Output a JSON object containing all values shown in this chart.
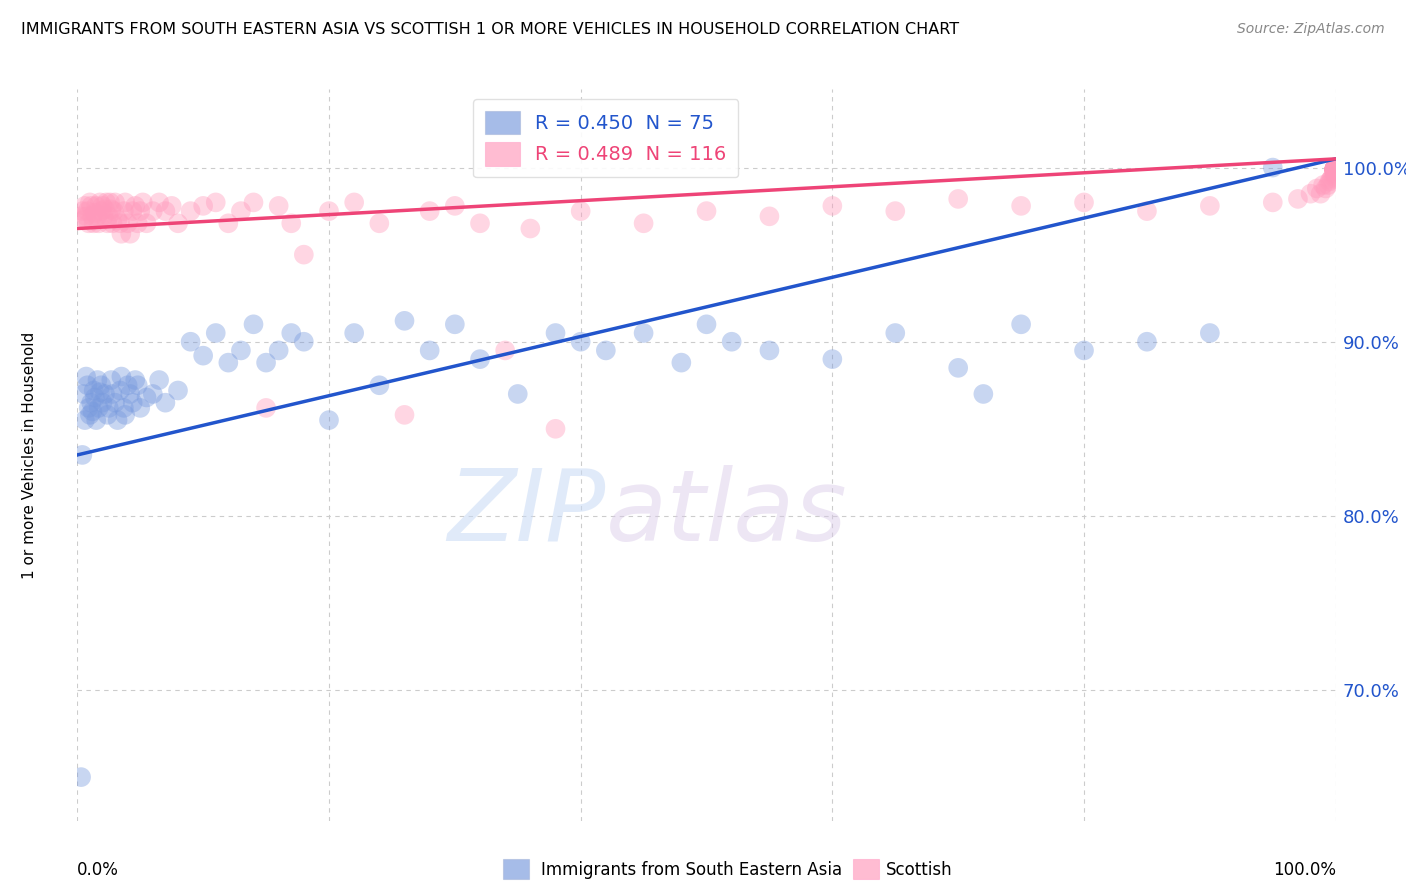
{
  "title": "IMMIGRANTS FROM SOUTH EASTERN ASIA VS SCOTTISH 1 OR MORE VEHICLES IN HOUSEHOLD CORRELATION CHART",
  "source": "Source: ZipAtlas.com",
  "ylabel": "1 or more Vehicles in Household",
  "ytick_labels": [
    "70.0%",
    "80.0%",
    "90.0%",
    "100.0%"
  ],
  "ytick_positions": [
    0.7,
    0.8,
    0.9,
    1.0
  ],
  "xlim": [
    0.0,
    1.0
  ],
  "ylim": [
    0.625,
    1.045
  ],
  "legend1_label": "R = 0.450  N = 75",
  "legend2_label": "R = 0.489  N = 116",
  "blue_color": "#7799dd",
  "pink_color": "#ff99bb",
  "blue_line_color": "#2255cc",
  "pink_line_color": "#ee4477",
  "watermark_zip": "ZIP",
  "watermark_atlas": "atlas",
  "blue_line_x0": 0.0,
  "blue_line_y0": 0.835,
  "blue_line_x1": 1.0,
  "blue_line_y1": 1.005,
  "pink_line_x0": 0.0,
  "pink_line_y0": 0.965,
  "pink_line_x1": 1.0,
  "pink_line_y1": 1.005,
  "blue_x": [
    0.003,
    0.004,
    0.005,
    0.006,
    0.007,
    0.008,
    0.009,
    0.01,
    0.011,
    0.012,
    0.013,
    0.014,
    0.015,
    0.016,
    0.017,
    0.018,
    0.019,
    0.02,
    0.022,
    0.024,
    0.025,
    0.027,
    0.028,
    0.03,
    0.032,
    0.034,
    0.035,
    0.037,
    0.038,
    0.04,
    0.042,
    0.044,
    0.046,
    0.048,
    0.05,
    0.055,
    0.06,
    0.065,
    0.07,
    0.08,
    0.09,
    0.1,
    0.11,
    0.12,
    0.13,
    0.14,
    0.15,
    0.16,
    0.17,
    0.18,
    0.2,
    0.22,
    0.24,
    0.26,
    0.28,
    0.3,
    0.32,
    0.35,
    0.38,
    0.4,
    0.42,
    0.45,
    0.48,
    0.5,
    0.52,
    0.55,
    0.6,
    0.65,
    0.7,
    0.72,
    0.75,
    0.8,
    0.85,
    0.9,
    0.95
  ],
  "blue_y": [
    0.65,
    0.835,
    0.87,
    0.855,
    0.88,
    0.875,
    0.862,
    0.858,
    0.865,
    0.86,
    0.872,
    0.868,
    0.855,
    0.878,
    0.862,
    0.871,
    0.875,
    0.865,
    0.87,
    0.858,
    0.862,
    0.878,
    0.87,
    0.865,
    0.855,
    0.872,
    0.88,
    0.862,
    0.858,
    0.875,
    0.87,
    0.865,
    0.878,
    0.875,
    0.862,
    0.868,
    0.87,
    0.878,
    0.865,
    0.872,
    0.9,
    0.892,
    0.905,
    0.888,
    0.895,
    0.91,
    0.888,
    0.895,
    0.905,
    0.9,
    0.855,
    0.905,
    0.875,
    0.912,
    0.895,
    0.91,
    0.89,
    0.87,
    0.905,
    0.9,
    0.895,
    0.905,
    0.888,
    0.91,
    0.9,
    0.895,
    0.89,
    0.905,
    0.885,
    0.87,
    0.91,
    0.895,
    0.9,
    0.905,
    1.0
  ],
  "pink_x": [
    0.003,
    0.004,
    0.005,
    0.006,
    0.007,
    0.008,
    0.009,
    0.01,
    0.011,
    0.012,
    0.013,
    0.014,
    0.015,
    0.016,
    0.017,
    0.018,
    0.019,
    0.02,
    0.021,
    0.022,
    0.023,
    0.024,
    0.025,
    0.026,
    0.027,
    0.028,
    0.029,
    0.03,
    0.032,
    0.034,
    0.035,
    0.037,
    0.038,
    0.04,
    0.042,
    0.044,
    0.046,
    0.048,
    0.05,
    0.052,
    0.055,
    0.06,
    0.065,
    0.07,
    0.075,
    0.08,
    0.09,
    0.1,
    0.11,
    0.12,
    0.13,
    0.14,
    0.15,
    0.16,
    0.17,
    0.18,
    0.2,
    0.22,
    0.24,
    0.26,
    0.28,
    0.3,
    0.32,
    0.34,
    0.36,
    0.38,
    0.4,
    0.45,
    0.5,
    0.55,
    0.6,
    0.65,
    0.7,
    0.75,
    0.8,
    0.85,
    0.9,
    0.95,
    0.97,
    0.98,
    0.985,
    0.988,
    0.99,
    0.992,
    0.994,
    0.995,
    0.996,
    0.997,
    0.998,
    0.999,
    0.999,
    0.999,
    0.999,
    0.999,
    0.999,
    0.999,
    0.999,
    0.999,
    0.999,
    0.999,
    0.999,
    0.999,
    0.999,
    0.999,
    0.999,
    0.999,
    0.999,
    0.999,
    0.999,
    0.999,
    0.999,
    0.999,
    0.999,
    0.999,
    0.999,
    0.999
  ],
  "pink_y": [
    0.972,
    0.975,
    0.97,
    0.978,
    0.972,
    0.975,
    0.968,
    0.98,
    0.978,
    0.972,
    0.968,
    0.974,
    0.978,
    0.972,
    0.968,
    0.98,
    0.975,
    0.978,
    0.972,
    0.976,
    0.98,
    0.968,
    0.972,
    0.98,
    0.976,
    0.968,
    0.975,
    0.98,
    0.97,
    0.968,
    0.962,
    0.975,
    0.98,
    0.968,
    0.962,
    0.975,
    0.978,
    0.968,
    0.975,
    0.98,
    0.968,
    0.975,
    0.98,
    0.975,
    0.978,
    0.968,
    0.975,
    0.978,
    0.98,
    0.968,
    0.975,
    0.98,
    0.862,
    0.978,
    0.968,
    0.95,
    0.975,
    0.98,
    0.968,
    0.858,
    0.975,
    0.978,
    0.968,
    0.895,
    0.965,
    0.85,
    0.975,
    0.968,
    0.975,
    0.972,
    0.978,
    0.975,
    0.982,
    0.978,
    0.98,
    0.975,
    0.978,
    0.98,
    0.982,
    0.985,
    0.988,
    0.985,
    0.99,
    0.988,
    0.99,
    0.992,
    0.993,
    0.994,
    0.995,
    0.996,
    0.997,
    0.998,
    0.999,
    0.999,
    0.999,
    0.999,
    0.999,
    0.999,
    0.999,
    0.999,
    0.999,
    0.999,
    0.999,
    0.999,
    0.999,
    0.999,
    0.999,
    0.999,
    0.999,
    0.999,
    0.999,
    0.999,
    0.999,
    0.999,
    0.999,
    0.999
  ]
}
